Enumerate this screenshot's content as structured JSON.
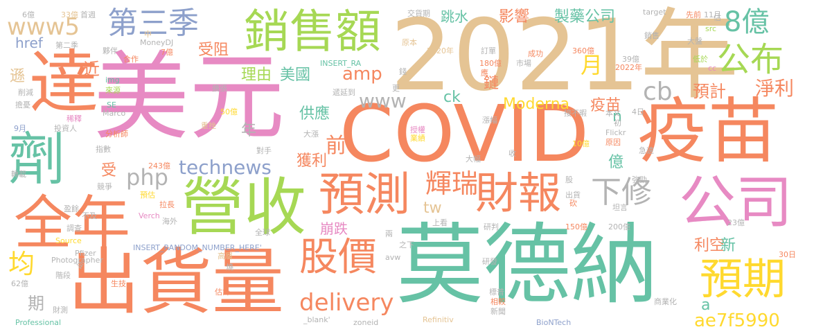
{
  "palette": {
    "coral": "#f5875f",
    "teal": "#66c2a5",
    "pink": "#e78ac3",
    "tan": "#e5c494",
    "lime": "#a6d854",
    "gold": "#ffd92f",
    "blue": "#8da0cb",
    "gray": "#b3b3b3"
  },
  "words": [
    {
      "text": "2021年",
      "color": "tan"
    },
    {
      "text": "美元",
      "color": "pink"
    },
    {
      "text": "COVID",
      "color": "coral"
    },
    {
      "text": "疫苗",
      "color": "coral"
    },
    {
      "text": "莫德納",
      "color": "teal"
    },
    {
      "text": "出貨量",
      "color": "coral"
    },
    {
      "text": "營收",
      "color": "lime"
    },
    {
      "text": "銷售額",
      "color": "lime"
    },
    {
      "text": "達",
      "color": "coral"
    },
    {
      "text": "劑",
      "color": "teal"
    },
    {
      "text": "全年",
      "color": "coral"
    },
    {
      "text": "公司",
      "color": "pink"
    },
    {
      "text": "預測",
      "color": "coral"
    },
    {
      "text": "財報",
      "color": "coral"
    },
    {
      "text": "股價",
      "color": "coral"
    },
    {
      "text": "預期",
      "color": "gold"
    },
    {
      "text": "第三季",
      "color": "blue"
    },
    {
      "text": "www5",
      "color": "tan"
    },
    {
      "text": "公布",
      "color": "lime"
    },
    {
      "text": "8億",
      "color": "teal"
    },
    {
      "text": "下修",
      "color": "gray"
    },
    {
      "text": "technews",
      "color": "blue"
    },
    {
      "text": "delivery",
      "color": "coral"
    },
    {
      "text": "輝瑞",
      "color": "coral"
    },
    {
      "text": "ae7f5990",
      "color": "gold"
    },
    {
      "text": "均",
      "color": "gold"
    },
    {
      "text": "php",
      "color": "gray"
    },
    {
      "text": "www",
      "color": "gray"
    },
    {
      "text": "amp",
      "color": "coral"
    },
    {
      "text": "cb",
      "color": "gray"
    },
    {
      "text": "淨利",
      "color": "coral"
    },
    {
      "text": "預計",
      "color": "coral"
    },
    {
      "text": "月",
      "color": "gold"
    },
    {
      "text": "跳水",
      "color": "teal"
    },
    {
      "text": "影響",
      "color": "coral"
    },
    {
      "text": "製藥公司",
      "color": "teal"
    },
    {
      "text": "理由",
      "color": "lime"
    },
    {
      "text": "美國",
      "color": "teal"
    },
    {
      "text": "受阻",
      "color": "coral"
    },
    {
      "text": "Moderna",
      "color": "gold"
    },
    {
      "text": "疫苗",
      "color": "coral"
    },
    {
      "text": "鏈",
      "color": "coral"
    },
    {
      "text": "供應",
      "color": "teal"
    },
    {
      "text": "ck",
      "color": "teal"
    },
    {
      "text": "tw",
      "color": "tan"
    },
    {
      "text": "前",
      "color": "coral"
    },
    {
      "text": "獲利",
      "color": "coral"
    },
    {
      "text": "億",
      "color": "teal"
    },
    {
      "text": "崩跌",
      "color": "pink"
    },
    {
      "text": "利空",
      "color": "coral"
    },
    {
      "text": "新",
      "color": "teal"
    },
    {
      "text": "期",
      "color": "gray"
    },
    {
      "text": "href",
      "color": "blue"
    },
    {
      "text": "近",
      "color": "coral"
    },
    {
      "text": "遜",
      "color": "tan"
    },
    {
      "text": "受",
      "color": "coral"
    },
    {
      "text": "年",
      "color": "gray"
    },
    {
      "text": "a",
      "color": "teal"
    },
    {
      "text": "n",
      "color": "teal"
    },
    {
      "text": "中",
      "color": "tan"
    },
    {
      "text": "MoneyDJ",
      "color": "gray"
    },
    {
      "text": "7億",
      "color": "coral"
    },
    {
      "text": "img",
      "color": "teal"
    },
    {
      "text": "來源",
      "color": "lime"
    },
    {
      "text": "合作",
      "color": "coral"
    },
    {
      "text": "夥伴",
      "color": "gray"
    },
    {
      "text": "第二季",
      "color": "gray"
    },
    {
      "text": "33億",
      "color": "tan"
    },
    {
      "text": "首週",
      "color": "gray"
    },
    {
      "text": "6億",
      "color": "gray"
    },
    {
      "text": "交貨期",
      "color": "gray"
    },
    {
      "text": "原本",
      "color": "tan"
    },
    {
      "text": "2020年",
      "color": "tan"
    },
    {
      "text": "INSERT_RA",
      "color": "teal"
    },
    {
      "text": "錢",
      "color": "gray"
    },
    {
      "text": "遞延到",
      "color": "gray"
    },
    {
      "text": "更",
      "color": "gray"
    },
    {
      "text": "訂單",
      "color": "gray"
    },
    {
      "text": "180億",
      "color": "coral"
    },
    {
      "text": "應",
      "color": "coral"
    },
    {
      "text": "市場",
      "color": "gray"
    },
    {
      "text": "成功",
      "color": "coral"
    },
    {
      "text": "target",
      "color": "gray"
    },
    {
      "text": "先前",
      "color": "coral"
    },
    {
      "text": "11月",
      "color": "gray"
    },
    {
      "text": "估",
      "color": "gray"
    },
    {
      "text": "src",
      "color": "lime"
    },
    {
      "text": "銷售",
      "color": "gray"
    },
    {
      "text": "大盤",
      "color": "gray"
    },
    {
      "text": "360億",
      "color": "coral"
    },
    {
      "text": "39億",
      "color": "gray"
    },
    {
      "text": "2022年",
      "color": "coral"
    },
    {
      "text": "低於",
      "color": "lime"
    },
    {
      "text": "cc",
      "color": "pink"
    },
    {
      "text": "削減",
      "color": "gray"
    },
    {
      "text": "擴張",
      "color": "gray"
    },
    {
      "text": "擔憂",
      "color": "gray"
    },
    {
      "text": "SE",
      "color": "teal"
    },
    {
      "text": "Marco",
      "color": "gray"
    },
    {
      "text": "稀釋",
      "color": "pink"
    },
    {
      "text": "9月",
      "color": "blue"
    },
    {
      "text": "投資人",
      "color": "gray"
    },
    {
      "text": "50億",
      "color": "gold"
    },
    {
      "text": "分析師",
      "color": "coral"
    },
    {
      "text": "重挫",
      "color": "tan"
    },
    {
      "text": "4日",
      "color": "gray"
    },
    {
      "text": "接不暇",
      "color": "gray"
    },
    {
      "text": "本文",
      "color": "gray"
    },
    {
      "text": "初",
      "color": "gray"
    },
    {
      "text": "授權",
      "color": "pink"
    },
    {
      "text": "漲幅",
      "color": "gray"
    },
    {
      "text": "業績",
      "color": "gold"
    },
    {
      "text": "大漲",
      "color": "gray"
    },
    {
      "text": "Flickr",
      "color": "gray"
    },
    {
      "text": "原因",
      "color": "coral"
    },
    {
      "text": "10億",
      "color": "gold"
    },
    {
      "text": "急速",
      "color": "gray"
    },
    {
      "text": "指數",
      "color": "gray"
    },
    {
      "text": "對手",
      "color": "gray"
    },
    {
      "text": "收",
      "color": "gray"
    },
    {
      "text": "大幅",
      "color": "gray"
    },
    {
      "text": "轉載",
      "color": "gray"
    },
    {
      "text": "243億",
      "color": "coral"
    },
    {
      "text": "競爭",
      "color": "gray"
    },
    {
      "text": "預估",
      "color": "gold"
    },
    {
      "text": "股",
      "color": "gray"
    },
    {
      "text": "強勁",
      "color": "gray"
    },
    {
      "text": "出貨",
      "color": "gray"
    },
    {
      "text": "砍",
      "color": "coral"
    },
    {
      "text": "坦言",
      "color": "gray"
    },
    {
      "text": "盈餘",
      "color": "gray"
    },
    {
      "text": "拉長",
      "color": "coral"
    },
    {
      "text": "不及",
      "color": "gray"
    },
    {
      "text": "Verch",
      "color": "pink"
    },
    {
      "text": "海外",
      "color": "gray"
    },
    {
      "text": "調查",
      "color": "gray"
    },
    {
      "text": "全球",
      "color": "gray"
    },
    {
      "text": "兩",
      "color": "gray"
    },
    {
      "text": "之下",
      "color": "gray"
    },
    {
      "text": "上看",
      "color": "gray"
    },
    {
      "text": "研判",
      "color": "gray"
    },
    {
      "text": "150億",
      "color": "coral"
    },
    {
      "text": "200億",
      "color": "gray"
    },
    {
      "text": "23億",
      "color": "gray"
    },
    {
      "text": "Source",
      "color": "gold"
    },
    {
      "text": "INSERT_RANDOM_NUMBER_HERE'",
      "color": "blue"
    },
    {
      "text": "Pfizer",
      "color": "gray"
    },
    {
      "text": "Photographer",
      "color": "gray"
    },
    {
      "text": "30日",
      "color": "coral"
    },
    {
      "text": "令",
      "color": "gray"
    },
    {
      "text": "高層",
      "color": "tan"
    },
    {
      "text": "avw",
      "color": "gray"
    },
    {
      "text": "燒",
      "color": "gray"
    },
    {
      "text": "研發",
      "color": "gray"
    },
    {
      "text": "階段",
      "color": "gray"
    },
    {
      "text": "62億",
      "color": "gray"
    },
    {
      "text": "財測",
      "color": "gray"
    },
    {
      "text": "生技",
      "color": "coral"
    },
    {
      "text": "估計",
      "color": "coral"
    },
    {
      "text": "標普",
      "color": "gray"
    },
    {
      "text": "相較",
      "color": "coral"
    },
    {
      "text": "商業化",
      "color": "gray"
    },
    {
      "text": "新聞",
      "color": "gray"
    },
    {
      "text": "Professional",
      "color": "teal"
    },
    {
      "text": "_blank'",
      "color": "gray"
    },
    {
      "text": "zoneid",
      "color": "gray"
    },
    {
      "text": "Refinitiv",
      "color": "tan"
    },
    {
      "text": "BioNTech",
      "color": "blue"
    }
  ]
}
